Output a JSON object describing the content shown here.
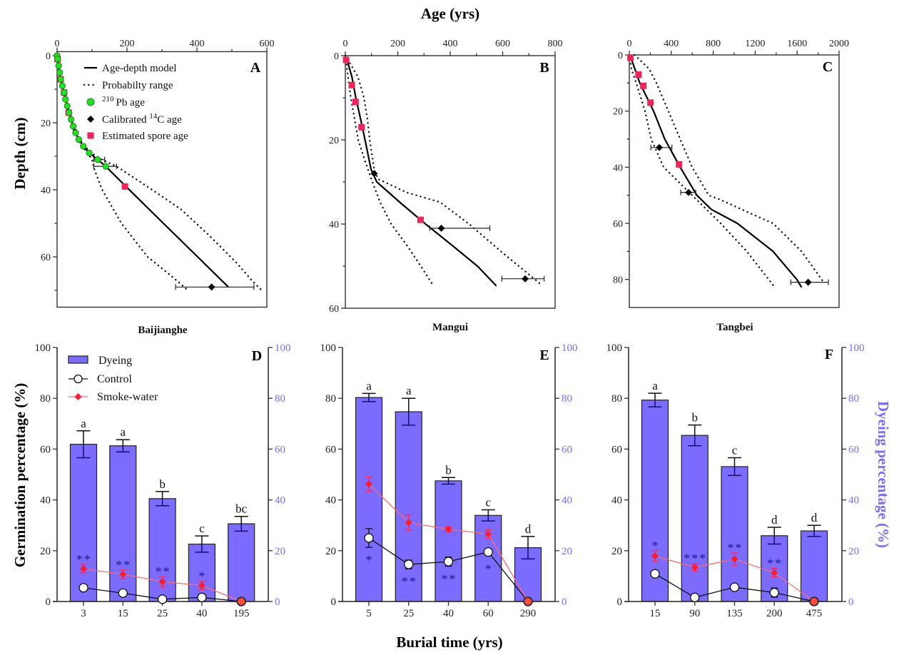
{
  "colors": {
    "dyeing": "#7b6cff",
    "dyeing_edge": "#222222",
    "dyeing_err_lower": "#10106e",
    "right_axis": "#7b6cff",
    "smoke_marker": "#ff1a2e",
    "smoke_line": "#ff6b6b",
    "smoke_error": "#ff2a5a",
    "control_marker": "#ffffff",
    "control_line": "#111111",
    "significance": "#1c1c8c",
    "pb210": "#22e022",
    "spore": "#f0245a",
    "c14": "#000000"
  },
  "chart_data": [
    {
      "panel": "A",
      "type": "line",
      "site": "Baijianghe",
      "xlabel": "",
      "ylabel": "Depth (cm)",
      "xlim": [
        0,
        600
      ],
      "ylim": [
        -1.2,
        75
      ],
      "y_inverted": true,
      "x_axis_position": "top",
      "grid": false,
      "xticks": [
        0,
        200,
        400,
        600
      ],
      "xminor": [
        100,
        300,
        500
      ],
      "yticks": [
        0,
        20,
        40,
        60
      ],
      "yminor": [
        10,
        30,
        50,
        70
      ],
      "legend": {
        "placement": "top-right",
        "entries": [
          {
            "key": "model",
            "label": "Age-depth model"
          },
          {
            "key": "range",
            "label": "Probabilty range"
          },
          {
            "key": "pb210",
            "sup": "210",
            "label": "Pb age"
          },
          {
            "key": "c14",
            "label": "Calibrated ",
            "sup": "14",
            "label2": "C age"
          },
          {
            "key": "spore",
            "label": "Estimated spore age"
          }
        ]
      },
      "model": [
        [
          0,
          0
        ],
        [
          4.5,
          3
        ],
        [
          10,
          7
        ],
        [
          20,
          11
        ],
        [
          29,
          15
        ],
        [
          40,
          19
        ],
        [
          53,
          23
        ],
        [
          62,
          25
        ],
        [
          75,
          27
        ],
        [
          92,
          29
        ],
        [
          116,
          31
        ],
        [
          139,
          33
        ],
        [
          197,
          39
        ],
        [
          304,
          50
        ],
        [
          402,
          60
        ],
        [
          490,
          69
        ]
      ],
      "range_young": [
        [
          0,
          0
        ],
        [
          4,
          3
        ],
        [
          9,
          7
        ],
        [
          18,
          11
        ],
        [
          27,
          15
        ],
        [
          37,
          19
        ],
        [
          50,
          23
        ],
        [
          59,
          25
        ],
        [
          71,
          27
        ],
        [
          87,
          29
        ],
        [
          100,
          31
        ],
        [
          107,
          34
        ],
        [
          129,
          40
        ],
        [
          184,
          50
        ],
        [
          259,
          60
        ],
        [
          327,
          65.7
        ],
        [
          378,
          70.3
        ]
      ],
      "range_old": [
        [
          0,
          0
        ],
        [
          5,
          3
        ],
        [
          11,
          7
        ],
        [
          22,
          11
        ],
        [
          31,
          15
        ],
        [
          43,
          19
        ],
        [
          56,
          23
        ],
        [
          65,
          25
        ],
        [
          79,
          27
        ],
        [
          98,
          29
        ],
        [
          128,
          31
        ],
        [
          170,
          33
        ],
        [
          272,
          40
        ],
        [
          354,
          45.8
        ],
        [
          435,
          53.6
        ],
        [
          510,
          61.4
        ],
        [
          558,
          67.1
        ],
        [
          588,
          70.3
        ]
      ],
      "pb210": [
        [
          0,
          0
        ],
        [
          1.5,
          1
        ],
        [
          4.5,
          3
        ],
        [
          7.5,
          5
        ],
        [
          10,
          7
        ],
        [
          15,
          9
        ],
        [
          20,
          11
        ],
        [
          24,
          13
        ],
        [
          29,
          15
        ],
        [
          34,
          17
        ],
        [
          40,
          19
        ],
        [
          46,
          21
        ],
        [
          53,
          23
        ],
        [
          62,
          25
        ],
        [
          75,
          27
        ],
        [
          92,
          29
        ],
        [
          116,
          31,
          105,
          136
        ],
        [
          139,
          33,
          105,
          170
        ]
      ],
      "c14": [
        [
          442,
          69,
          339,
          563
        ]
      ],
      "spore": [
        [
          1.5,
          1
        ],
        [
          10,
          7
        ],
        [
          20,
          11
        ],
        [
          33,
          17
        ],
        [
          194,
          39
        ]
      ]
    },
    {
      "panel": "B",
      "type": "line",
      "site": "Mangui",
      "xlabel": "Age (yrs)",
      "ylabel": "",
      "xlim": [
        0,
        800
      ],
      "ylim": [
        0,
        60
      ],
      "y_inverted": true,
      "x_axis_position": "top",
      "grid": false,
      "xticks": [
        0,
        200,
        400,
        600,
        800
      ],
      "xminor": [
        100,
        300,
        500,
        700
      ],
      "yticks": [
        0,
        20,
        40,
        60
      ],
      "yminor": [
        10,
        30,
        50
      ],
      "model": [
        [
          3,
          0.3
        ],
        [
          25,
          5
        ],
        [
          40,
          10
        ],
        [
          58,
          15
        ],
        [
          75,
          20
        ],
        [
          98,
          27
        ],
        [
          120,
          30
        ],
        [
          211,
          35
        ],
        [
          306,
          40
        ],
        [
          406,
          45
        ],
        [
          504,
          50
        ],
        [
          576,
          54.7
        ]
      ],
      "range_young": [
        [
          0,
          0
        ],
        [
          10,
          5
        ],
        [
          21,
          10
        ],
        [
          35,
          15
        ],
        [
          49,
          20
        ],
        [
          75,
          25
        ],
        [
          103,
          30
        ],
        [
          134,
          35
        ],
        [
          175,
          40
        ],
        [
          234,
          45
        ],
        [
          288,
          50
        ],
        [
          336,
          54.7
        ]
      ],
      "range_old": [
        [
          0,
          0
        ],
        [
          48,
          5
        ],
        [
          71,
          10
        ],
        [
          84,
          15
        ],
        [
          93,
          20
        ],
        [
          110,
          27
        ],
        [
          125,
          29.3
        ],
        [
          234,
          32.5
        ],
        [
          361,
          34.8
        ],
        [
          470,
          39.9
        ],
        [
          597,
          46.7
        ],
        [
          697,
          51.8
        ],
        [
          751,
          54.6
        ]
      ],
      "pb210": [],
      "c14": [
        [
          110,
          28
        ],
        [
          366,
          41,
          322,
          551
        ],
        [
          686,
          53,
          597,
          758
        ]
      ],
      "spore": [
        [
          3,
          1
        ],
        [
          25,
          7
        ],
        [
          39,
          11
        ],
        [
          62,
          17
        ],
        [
          287,
          39
        ]
      ]
    },
    {
      "panel": "C",
      "type": "line",
      "site": "Tangbei",
      "xlabel": "",
      "ylabel": "",
      "xlim": [
        0,
        2000
      ],
      "ylim": [
        0,
        90
      ],
      "y_inverted": true,
      "x_axis_position": "top",
      "grid": false,
      "xticks": [
        0,
        400,
        800,
        1200,
        1600,
        2000
      ],
      "xminor": [
        200,
        600,
        1000,
        1400,
        1800
      ],
      "yticks": [
        0,
        20,
        40,
        60,
        80
      ],
      "yminor": [
        10,
        30,
        50,
        70
      ],
      "model": [
        [
          9,
          0.3
        ],
        [
          100,
          10
        ],
        [
          231,
          20
        ],
        [
          338,
          30
        ],
        [
          485,
          40
        ],
        [
          644,
          50
        ],
        [
          780,
          55
        ],
        [
          1030,
          60
        ],
        [
          1370,
          70
        ],
        [
          1597,
          80
        ],
        [
          1642,
          82.8
        ]
      ],
      "range_young": [
        [
          0,
          0
        ],
        [
          20,
          5
        ],
        [
          66,
          10
        ],
        [
          150,
          20
        ],
        [
          209,
          30
        ],
        [
          327,
          40
        ],
        [
          599,
          50
        ],
        [
          871,
          60
        ],
        [
          1120,
          70
        ],
        [
          1381,
          82.5
        ]
      ],
      "range_old": [
        [
          50,
          0
        ],
        [
          190,
          5
        ],
        [
          259,
          10
        ],
        [
          372,
          20
        ],
        [
          485,
          30
        ],
        [
          599,
          40
        ],
        [
          757,
          50
        ],
        [
          871,
          51.6
        ],
        [
          1098,
          55.5
        ],
        [
          1370,
          60
        ],
        [
          1642,
          70
        ],
        [
          1835,
          80
        ],
        [
          1860,
          81.5
        ]
      ],
      "pb210": [],
      "c14": [
        [
          286,
          33,
          206,
          406
        ],
        [
          565,
          49,
          490,
          633
        ],
        [
          1705,
          81,
          1540,
          1898
        ]
      ],
      "spore": [
        [
          11,
          1
        ],
        [
          88,
          7
        ],
        [
          134,
          11
        ],
        [
          202,
          17
        ],
        [
          474,
          39
        ]
      ]
    },
    {
      "panel": "D",
      "type": "bar",
      "site": "Baijianghe",
      "xlabel": "",
      "ylabel": "Germination percentage (%)",
      "y2label": "",
      "categories": [
        "3",
        "15",
        "25",
        "40",
        "195"
      ],
      "ylim": [
        0,
        100
      ],
      "yticks": [
        0,
        20,
        40,
        60,
        80,
        100
      ],
      "y2lim": [
        0,
        100
      ],
      "y2ticks": [
        0,
        20,
        40,
        60,
        80,
        100
      ],
      "grid": false,
      "legend": {
        "placement": "top-left"
      },
      "series": [
        {
          "name": "Dyeing",
          "kind": "bar",
          "axis": "right",
          "values": [
            61.9,
            61.3,
            40.5,
            22.6,
            30.6
          ],
          "errors": [
            5.3,
            2.4,
            2.8,
            3.2,
            2.9
          ],
          "letters": [
            "a",
            "a",
            "b",
            "c",
            "bc"
          ]
        },
        {
          "name": "Control",
          "kind": "line",
          "marker": "open-circle",
          "values": [
            5.4,
            3.3,
            0.9,
            1.6,
            0
          ],
          "errors": [
            0,
            0,
            0,
            0,
            0
          ]
        },
        {
          "name": "Smoke-water",
          "kind": "line",
          "marker": "diamond",
          "values": [
            12.9,
            10.7,
            7.8,
            6.3,
            0
          ],
          "errors": [
            1.7,
            1.7,
            2.0,
            1.6,
            0
          ]
        }
      ],
      "significance": [
        "**",
        "**",
        "**",
        "*",
        ""
      ],
      "significance_placement": "above"
    },
    {
      "panel": "E",
      "type": "bar",
      "site": "Mangui",
      "xlabel": "Burial time (yrs)",
      "ylabel": "",
      "y2label": "",
      "categories": [
        "5",
        "25",
        "40",
        "60",
        "290"
      ],
      "ylim": [
        0,
        100
      ],
      "yticks": [
        0,
        20,
        40,
        60,
        80,
        100
      ],
      "y2lim": [
        0,
        100
      ],
      "y2ticks": [
        0,
        20,
        40,
        60,
        80,
        100
      ],
      "grid": false,
      "series": [
        {
          "name": "Dyeing",
          "kind": "bar",
          "axis": "right",
          "values": [
            80.3,
            74.7,
            47.5,
            33.9,
            21.2
          ],
          "errors": [
            1.6,
            5.3,
            1.3,
            2.2,
            4.4
          ],
          "letters": [
            "a",
            "a",
            "b",
            "c",
            "d"
          ]
        },
        {
          "name": "Control",
          "kind": "line",
          "marker": "open-circle",
          "values": [
            25.0,
            14.6,
            15.7,
            19.5,
            0
          ],
          "errors": [
            3.7,
            1.7,
            1.8,
            0,
            0
          ]
        },
        {
          "name": "Smoke-water",
          "kind": "line",
          "marker": "diamond",
          "values": [
            46.2,
            31.1,
            28.4,
            26.6,
            0
          ],
          "errors": [
            2.8,
            3.0,
            1.0,
            1.7,
            0
          ]
        }
      ],
      "significance": [
        "*",
        "**",
        "**",
        "*",
        ""
      ],
      "significance_placement": "below"
    },
    {
      "panel": "F",
      "type": "bar",
      "site": "Tangbei",
      "xlabel": "",
      "ylabel": "",
      "y2label": "Dyeing percentage (%)",
      "categories": [
        "15",
        "90",
        "135",
        "200",
        "475"
      ],
      "ylim": [
        0,
        100
      ],
      "yticks": [
        0,
        20,
        40,
        60,
        80,
        100
      ],
      "y2lim": [
        0,
        100
      ],
      "y2ticks": [
        0,
        20,
        40,
        60,
        80,
        100
      ],
      "grid": false,
      "series": [
        {
          "name": "Dyeing",
          "kind": "bar",
          "axis": "right",
          "values": [
            79.3,
            65.4,
            53.1,
            25.9,
            27.8
          ],
          "errors": [
            2.7,
            4.1,
            3.5,
            3.3,
            2.2
          ],
          "letters": [
            "a",
            "b",
            "c",
            "d",
            "d"
          ]
        },
        {
          "name": "Control",
          "kind": "line",
          "marker": "open-circle",
          "values": [
            10.9,
            1.6,
            5.6,
            3.5,
            0
          ],
          "errors": [
            0,
            0,
            0,
            1.8,
            0
          ]
        },
        {
          "name": "Smoke-water",
          "kind": "line",
          "marker": "diamond",
          "values": [
            17.9,
            13.4,
            16.7,
            11.3,
            0
          ],
          "errors": [
            2.1,
            1.5,
            2.4,
            1.7,
            0
          ]
        }
      ],
      "significance": [
        "*",
        "***",
        "**",
        "**",
        ""
      ],
      "significance_placement": "above"
    }
  ]
}
